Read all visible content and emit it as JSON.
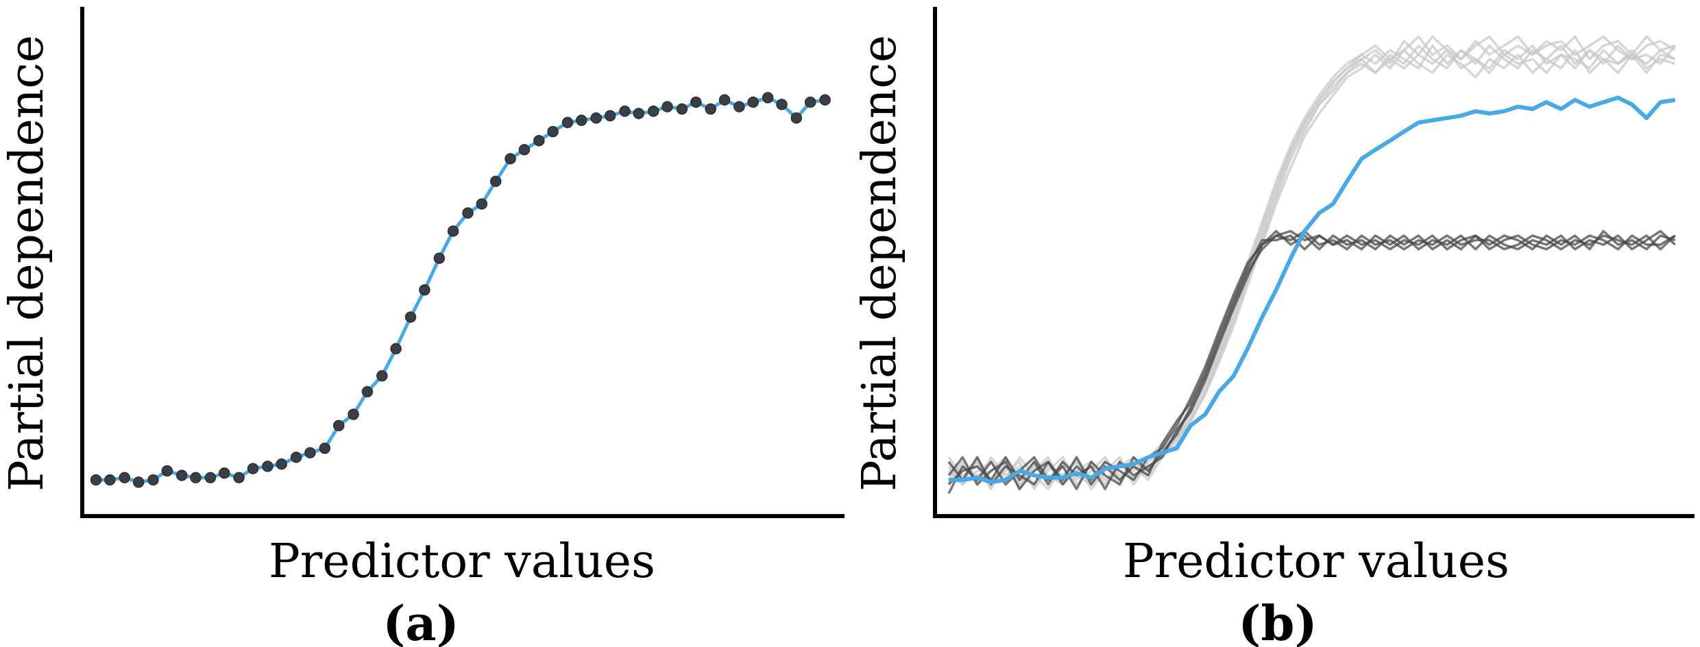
{
  "colors": {
    "average": "#4aa8e4",
    "point": "#3a3f46",
    "ice_light": "#c8c8c8",
    "ice_dark": "#4a4a4a",
    "axis": "#000000"
  },
  "chart_data": [
    {
      "type": "line",
      "panel_label": "(a)",
      "xlabel": "Predictor values",
      "ylabel": "Partial dependence",
      "xlim": [
        0,
        1
      ],
      "ylim": [
        0,
        1
      ],
      "grid": false,
      "markers": true,
      "series": [
        {
          "x": [
            0.0,
            0.019,
            0.039,
            0.058,
            0.078,
            0.097,
            0.117,
            0.136,
            0.156,
            0.175,
            0.195,
            0.214,
            0.234,
            0.253,
            0.273,
            0.292,
            0.312,
            0.331,
            0.351,
            0.37,
            0.39,
            0.409,
            0.429,
            0.448,
            0.468,
            0.487,
            0.507,
            0.526,
            0.545,
            0.565,
            0.584,
            0.604,
            0.623,
            0.643,
            0.662,
            0.682,
            0.701,
            0.721,
            0.74,
            0.76,
            0.779,
            0.799,
            0.818,
            0.838,
            0.857,
            0.877,
            0.896,
            0.916,
            0.935,
            0.955,
            0.974,
            0.994
          ],
          "values": [
            0.03,
            0.03,
            0.035,
            0.025,
            0.03,
            0.05,
            0.04,
            0.035,
            0.035,
            0.045,
            0.035,
            0.055,
            0.06,
            0.065,
            0.08,
            0.09,
            0.1,
            0.15,
            0.175,
            0.225,
            0.26,
            0.32,
            0.39,
            0.45,
            0.52,
            0.58,
            0.62,
            0.64,
            0.69,
            0.74,
            0.76,
            0.78,
            0.8,
            0.82,
            0.825,
            0.83,
            0.835,
            0.845,
            0.84,
            0.845,
            0.855,
            0.85,
            0.865,
            0.85,
            0.87,
            0.855,
            0.865,
            0.875,
            0.86,
            0.83,
            0.865,
            0.87
          ]
        }
      ]
    },
    {
      "type": "line",
      "panel_label": "(b)",
      "xlabel": "Predictor values",
      "ylabel": "Partial dependence",
      "xlim": [
        0,
        1
      ],
      "ylim": [
        0,
        1
      ],
      "grid": false,
      "markers": false,
      "x": [
        0.0,
        0.019,
        0.039,
        0.058,
        0.078,
        0.097,
        0.117,
        0.136,
        0.156,
        0.175,
        0.195,
        0.214,
        0.234,
        0.253,
        0.273,
        0.292,
        0.312,
        0.331,
        0.351,
        0.37,
        0.39,
        0.409,
        0.429,
        0.448,
        0.468,
        0.487,
        0.507,
        0.526,
        0.545,
        0.565,
        0.584,
        0.604,
        0.623,
        0.643,
        0.662,
        0.682,
        0.701,
        0.721,
        0.74,
        0.76,
        0.779,
        0.799,
        0.818,
        0.838,
        0.857,
        0.877,
        0.896,
        0.916,
        0.935,
        0.955,
        0.974,
        0.994
      ],
      "series": [
        {
          "role": "average",
          "values": [
            0.03,
            0.03,
            0.035,
            0.025,
            0.03,
            0.05,
            0.04,
            0.035,
            0.035,
            0.045,
            0.035,
            0.055,
            0.06,
            0.065,
            0.08,
            0.09,
            0.1,
            0.15,
            0.175,
            0.225,
            0.26,
            0.32,
            0.39,
            0.45,
            0.52,
            0.58,
            0.62,
            0.64,
            0.69,
            0.74,
            0.76,
            0.78,
            0.8,
            0.82,
            0.825,
            0.83,
            0.835,
            0.845,
            0.84,
            0.845,
            0.855,
            0.85,
            0.865,
            0.85,
            0.87,
            0.855,
            0.865,
            0.875,
            0.86,
            0.83,
            0.865,
            0.87
          ]
        },
        {
          "role": "individual",
          "group": "light",
          "values": [
            0.05,
            0.02,
            0.08,
            0.03,
            0.06,
            0.01,
            0.07,
            0.04,
            0.02,
            0.08,
            0.03,
            0.06,
            0.02,
            0.07,
            0.05,
            0.1,
            0.13,
            0.18,
            0.24,
            0.31,
            0.4,
            0.49,
            0.58,
            0.67,
            0.76,
            0.82,
            0.87,
            0.91,
            0.94,
            0.96,
            0.98,
            0.95,
            1.0,
            0.97,
            1.01,
            0.98,
            0.96,
            1.0,
            0.97,
            0.99,
            1.01,
            0.97,
            1.0,
            0.98,
            1.01,
            0.96,
            0.99,
            1.0,
            0.97,
            1.01,
            0.98,
            0.99
          ]
        },
        {
          "role": "individual",
          "group": "light",
          "values": [
            0.08,
            0.04,
            0.06,
            0.01,
            0.07,
            0.03,
            0.05,
            0.08,
            0.02,
            0.05,
            0.07,
            0.03,
            0.06,
            0.08,
            0.04,
            0.09,
            0.12,
            0.17,
            0.23,
            0.3,
            0.38,
            0.47,
            0.56,
            0.65,
            0.74,
            0.8,
            0.86,
            0.89,
            0.93,
            0.96,
            0.93,
            0.97,
            0.95,
            0.99,
            0.96,
            0.94,
            0.98,
            0.95,
            0.99,
            0.96,
            0.94,
            0.98,
            0.96,
            0.99,
            0.95,
            0.98,
            0.96,
            0.93,
            0.97,
            0.95,
            0.98,
            0.96
          ]
        },
        {
          "role": "individual",
          "group": "light",
          "values": [
            0.03,
            0.07,
            0.02,
            0.08,
            0.04,
            0.06,
            0.02,
            0.05,
            0.08,
            0.03,
            0.06,
            0.02,
            0.07,
            0.03,
            0.06,
            0.08,
            0.11,
            0.16,
            0.22,
            0.29,
            0.37,
            0.46,
            0.55,
            0.64,
            0.72,
            0.79,
            0.84,
            0.88,
            0.92,
            0.94,
            0.97,
            0.94,
            0.98,
            0.95,
            0.93,
            0.97,
            0.95,
            0.92,
            0.96,
            0.94,
            0.97,
            0.93,
            0.96,
            0.94,
            0.98,
            0.93,
            0.96,
            0.95,
            0.98,
            0.94,
            0.96,
            0.95
          ]
        },
        {
          "role": "individual",
          "group": "light",
          "values": [
            0.06,
            0.02,
            0.05,
            0.07,
            0.03,
            0.08,
            0.04,
            0.01,
            0.06,
            0.04,
            0.02,
            0.07,
            0.04,
            0.05,
            0.08,
            0.11,
            0.14,
            0.19,
            0.26,
            0.33,
            0.42,
            0.51,
            0.6,
            0.69,
            0.77,
            0.83,
            0.88,
            0.92,
            0.95,
            0.97,
            0.99,
            0.96,
            0.98,
            1.01,
            0.97,
            0.99,
            0.96,
            0.99,
            1.01,
            0.97,
            0.99,
            0.97,
            0.99,
            1.0,
            0.97,
            0.99,
            1.01,
            0.98,
            0.96,
            0.99,
            1.0,
            0.98
          ]
        },
        {
          "role": "individual",
          "group": "light",
          "values": [
            0.02,
            0.06,
            0.04,
            0.05,
            0.08,
            0.02,
            0.06,
            0.03,
            0.07,
            0.02,
            0.05,
            0.08,
            0.03,
            0.06,
            0.03,
            0.08,
            0.12,
            0.16,
            0.22,
            0.3,
            0.39,
            0.48,
            0.57,
            0.66,
            0.75,
            0.81,
            0.86,
            0.9,
            0.93,
            0.95,
            0.93,
            0.96,
            0.94,
            0.97,
            0.95,
            0.98,
            0.94,
            0.96,
            0.93,
            0.97,
            0.95,
            0.96,
            0.93,
            0.97,
            0.96,
            0.94,
            0.98,
            0.95,
            0.97,
            0.93,
            0.97,
            0.96
          ]
        },
        {
          "role": "individual",
          "group": "light",
          "values": [
            0.07,
            0.03,
            0.07,
            0.02,
            0.05,
            0.07,
            0.01,
            0.06,
            0.04,
            0.07,
            0.01,
            0.05,
            0.08,
            0.02,
            0.07,
            0.09,
            0.13,
            0.18,
            0.25,
            0.32,
            0.41,
            0.5,
            0.59,
            0.68,
            0.76,
            0.82,
            0.87,
            0.91,
            0.94,
            0.97,
            0.95,
            0.98,
            0.96,
            0.94,
            0.99,
            0.95,
            0.98,
            0.96,
            0.94,
            0.98,
            0.96,
            0.99,
            0.95,
            0.97,
            0.94,
            0.98,
            0.95,
            0.99,
            0.96,
            0.97,
            0.95,
            0.99
          ]
        },
        {
          "role": "individual",
          "group": "dark",
          "values": [
            0.0,
            0.06,
            0.03,
            0.07,
            0.02,
            0.05,
            0.08,
            0.03,
            0.06,
            0.01,
            0.07,
            0.04,
            0.02,
            0.08,
            0.05,
            0.09,
            0.13,
            0.19,
            0.26,
            0.34,
            0.42,
            0.49,
            0.54,
            0.57,
            0.58,
            0.56,
            0.57,
            0.55,
            0.56,
            0.54,
            0.57,
            0.55,
            0.57,
            0.54,
            0.56,
            0.55,
            0.57,
            0.54,
            0.57,
            0.55,
            0.54,
            0.56,
            0.55,
            0.57,
            0.54,
            0.56,
            0.55,
            0.57,
            0.54,
            0.56,
            0.58,
            0.55
          ]
        },
        {
          "role": "individual",
          "group": "dark",
          "values": [
            0.07,
            0.03,
            0.08,
            0.02,
            0.06,
            0.04,
            0.02,
            0.07,
            0.02,
            0.06,
            0.03,
            0.07,
            0.05,
            0.03,
            0.08,
            0.1,
            0.15,
            0.21,
            0.28,
            0.36,
            0.44,
            0.51,
            0.55,
            0.58,
            0.55,
            0.57,
            0.54,
            0.57,
            0.55,
            0.56,
            0.54,
            0.57,
            0.55,
            0.57,
            0.54,
            0.56,
            0.54,
            0.57,
            0.55,
            0.57,
            0.56,
            0.54,
            0.57,
            0.55,
            0.57,
            0.54,
            0.58,
            0.55,
            0.56,
            0.54,
            0.57,
            0.56
          ]
        },
        {
          "role": "individual",
          "group": "dark",
          "values": [
            0.04,
            0.08,
            0.02,
            0.05,
            0.07,
            0.01,
            0.05,
            0.07,
            0.03,
            0.08,
            0.02,
            0.06,
            0.03,
            0.06,
            0.04,
            0.11,
            0.16,
            0.2,
            0.27,
            0.35,
            0.43,
            0.5,
            0.56,
            0.56,
            0.57,
            0.54,
            0.57,
            0.55,
            0.57,
            0.55,
            0.56,
            0.54,
            0.56,
            0.55,
            0.57,
            0.54,
            0.56,
            0.57,
            0.54,
            0.56,
            0.57,
            0.55,
            0.54,
            0.56,
            0.55,
            0.57,
            0.56,
            0.54,
            0.57,
            0.55,
            0.55,
            0.57
          ]
        },
        {
          "role": "individual",
          "group": "dark",
          "values": [
            0.02,
            0.05,
            0.06,
            0.03,
            0.08,
            0.03,
            0.07,
            0.02,
            0.07,
            0.04,
            0.06,
            0.01,
            0.07,
            0.04,
            0.06,
            0.08,
            0.14,
            0.18,
            0.25,
            0.33,
            0.41,
            0.48,
            0.55,
            0.57,
            0.56,
            0.58,
            0.55,
            0.56,
            0.54,
            0.57,
            0.55,
            0.56,
            0.54,
            0.56,
            0.55,
            0.57,
            0.55,
            0.56,
            0.56,
            0.54,
            0.55,
            0.57,
            0.56,
            0.54,
            0.56,
            0.55,
            0.57,
            0.56,
            0.55,
            0.57,
            0.54,
            0.57
          ]
        }
      ]
    }
  ]
}
